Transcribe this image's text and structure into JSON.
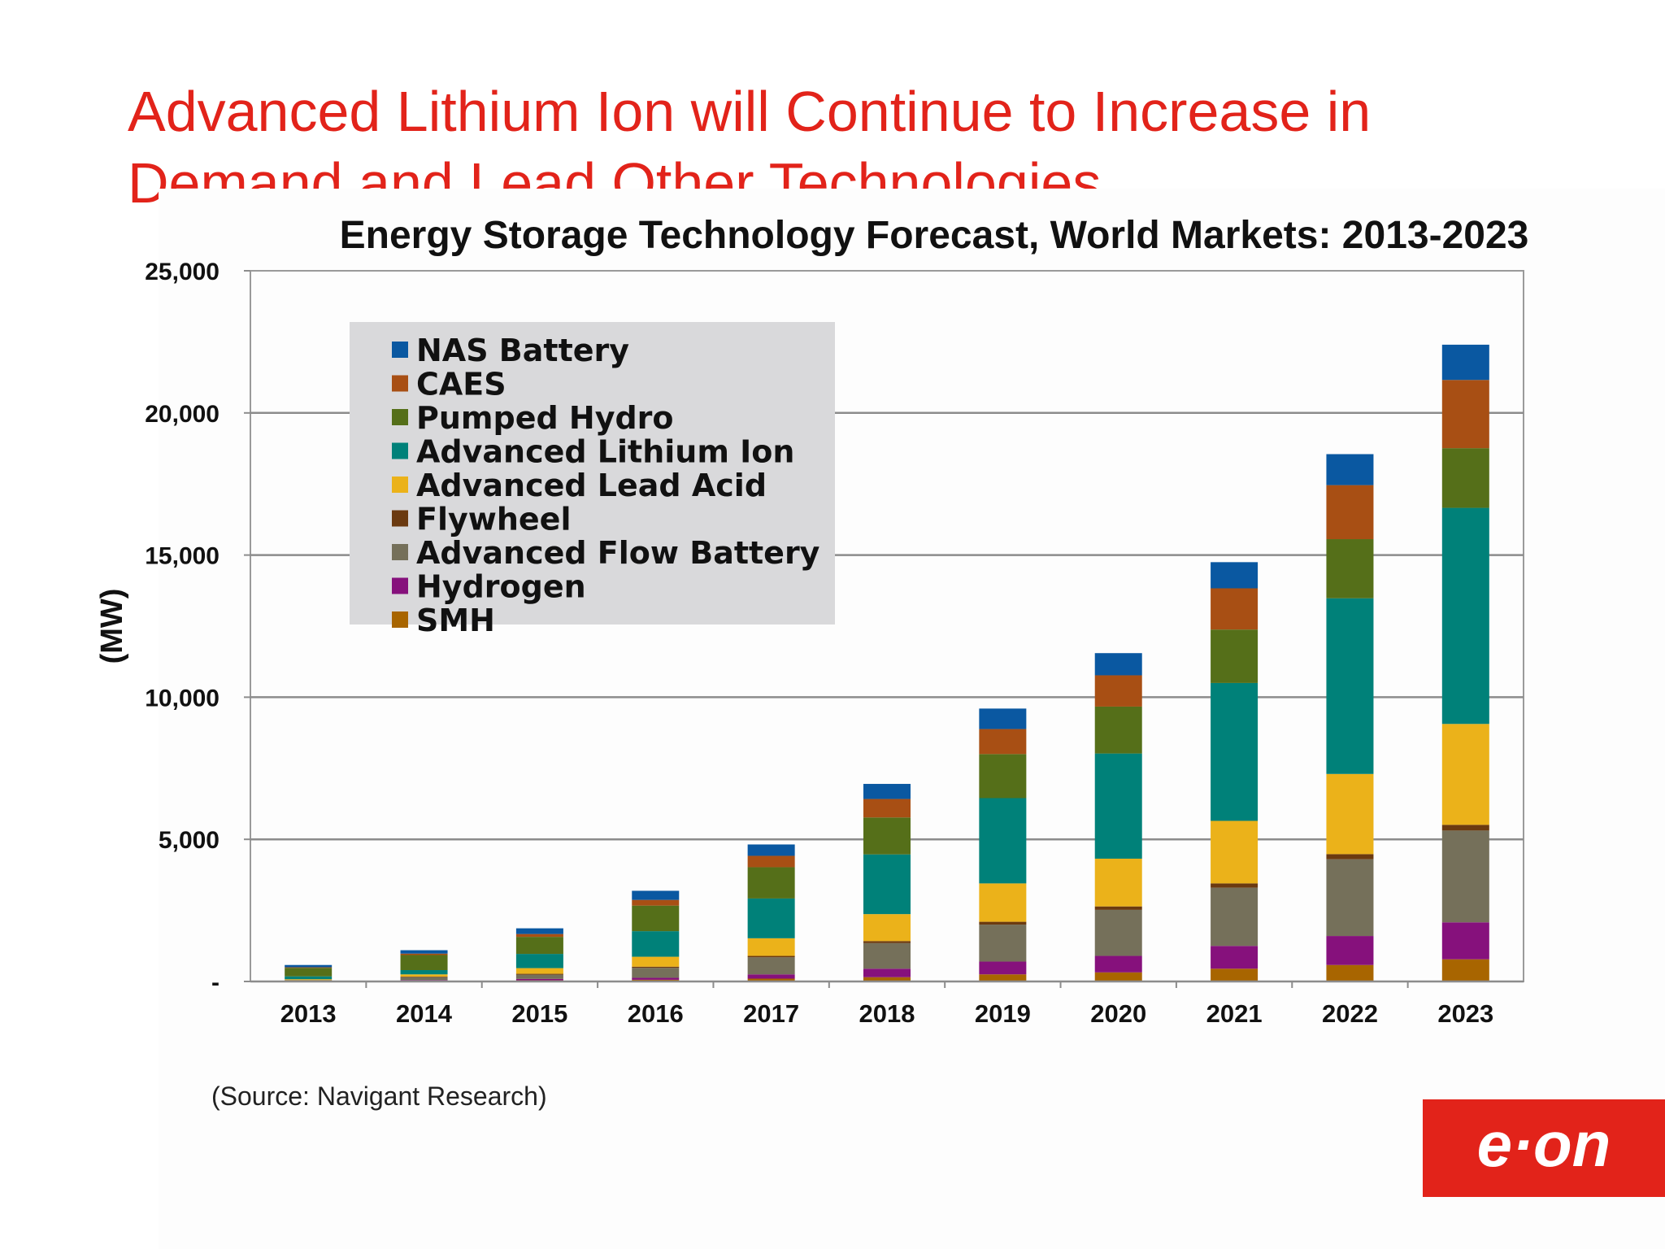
{
  "slide": {
    "title_line1": "Advanced Lithium Ion will Continue to Increase in",
    "title_line2": "Demand and Lead Other Technologies",
    "source": "(Source: Navigant Research)",
    "logo_text": "e·on",
    "colors": {
      "title": "#e2231a",
      "logo_bg": "#e2231a"
    }
  },
  "chart_data": {
    "type": "bar",
    "stacked": true,
    "title": "Energy Storage Technology Forecast, World Markets: 2013-2023",
    "xlabel": "",
    "ylabel": "(MW)",
    "ylim": [
      0,
      25000
    ],
    "yticks": [
      0,
      5000,
      10000,
      15000,
      20000,
      25000
    ],
    "ytick_labels": [
      "-",
      "5,000",
      "10,000",
      "15,000",
      "20,000",
      "25,000"
    ],
    "grid": true,
    "legend_position": "top-left",
    "categories": [
      "2013",
      "2014",
      "2015",
      "2016",
      "2017",
      "2018",
      "2019",
      "2020",
      "2021",
      "2022",
      "2023"
    ],
    "series": [
      {
        "name": "SMH",
        "color": "#a86500",
        "values": [
          10,
          20,
          40,
          60,
          100,
          150,
          250,
          320,
          450,
          580,
          780
        ]
      },
      {
        "name": "Hydrogen",
        "color": "#86117c",
        "values": [
          10,
          30,
          50,
          70,
          150,
          300,
          450,
          580,
          800,
          1020,
          1300
        ]
      },
      {
        "name": "Advanced Flow Battery",
        "color": "#75705a",
        "values": [
          20,
          100,
          150,
          350,
          600,
          900,
          1300,
          1620,
          2050,
          2700,
          3230
        ]
      },
      {
        "name": "Flywheel",
        "color": "#6b3a10",
        "values": [
          10,
          20,
          30,
          40,
          50,
          70,
          100,
          120,
          150,
          180,
          200
        ]
      },
      {
        "name": "Advanced Lead Acid",
        "color": "#ebb21a",
        "values": [
          30,
          80,
          200,
          350,
          620,
          950,
          1350,
          1680,
          2200,
          2820,
          3550
        ]
      },
      {
        "name": "Advanced Lithium Ion",
        "color": "#008179",
        "values": [
          100,
          150,
          500,
          900,
          1400,
          2100,
          3000,
          3700,
          4850,
          6180,
          7600
        ]
      },
      {
        "name": "Pumped Hydro",
        "color": "#556f19",
        "values": [
          300,
          530,
          600,
          900,
          1100,
          1300,
          1550,
          1650,
          1880,
          2080,
          2100
        ]
      },
      {
        "name": "CAES",
        "color": "#a84f14",
        "values": [
          20,
          50,
          100,
          200,
          400,
          650,
          880,
          1100,
          1450,
          1900,
          2400
        ]
      },
      {
        "name": "NAS Battery",
        "color": "#0a58a1",
        "values": [
          80,
          120,
          200,
          320,
          400,
          530,
          720,
          780,
          920,
          1090,
          1240
        ]
      }
    ],
    "legend_order": [
      "NAS Battery",
      "CAES",
      "Pumped Hydro",
      "Advanced Lithium Ion",
      "Advanced Lead Acid",
      "Flywheel",
      "Advanced Flow Battery",
      "Hydrogen",
      "SMH"
    ]
  }
}
